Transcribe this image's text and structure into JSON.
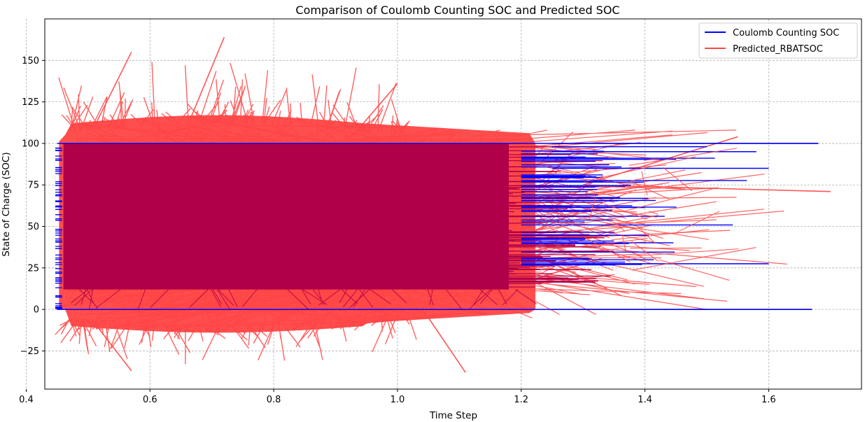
{
  "chart_data": {
    "type": "line",
    "title": "Comparison of Coulomb Counting SOC and Predicted SOC",
    "xlabel": "Time Step",
    "ylabel": "State of Charge (SOC)",
    "xlim": [
      0.43,
      1.75
    ],
    "ylim": [
      -48,
      175
    ],
    "xticks": [
      0.4,
      0.6,
      0.8,
      1.0,
      1.2,
      1.4,
      1.6
    ],
    "xtick_labels": [
      "0.4",
      "0.6",
      "0.8",
      "1.0",
      "1.2",
      "1.4",
      "1.6"
    ],
    "yticks": [
      -25,
      0,
      25,
      50,
      75,
      100,
      125,
      150
    ],
    "ytick_labels": [
      "−25",
      "0",
      "25",
      "50",
      "75",
      "100",
      "125",
      "150"
    ],
    "grid": true,
    "legend_position": "top-right",
    "series": [
      {
        "name": "Coulomb Counting SOC",
        "color": "#0000ff",
        "x_range": [
          0.45,
          1.68
        ],
        "y_range": [
          0,
          100
        ],
        "notable_points": [
          {
            "x": 1.68,
            "y": 100
          },
          {
            "x": 1.67,
            "y": 0
          },
          {
            "x": 1.6,
            "y": 27.5
          },
          {
            "x": 1.6,
            "y": 85
          },
          {
            "x": 1.58,
            "y": 95
          },
          {
            "x": 1.5,
            "y": 98
          }
        ]
      },
      {
        "name": "Predicted_RBATSOC",
        "color": "#ff4444",
        "x_range": [
          0.45,
          1.7
        ],
        "y_range": [
          -38,
          164
        ],
        "notable_points": [
          {
            "x": 0.72,
            "y": 164
          },
          {
            "x": 0.57,
            "y": 155
          },
          {
            "x": 1.0,
            "y": 136
          },
          {
            "x": 1.55,
            "y": 104
          },
          {
            "x": 1.7,
            "y": 71
          },
          {
            "x": 1.11,
            "y": -38
          },
          {
            "x": 0.57,
            "y": -37
          }
        ]
      }
    ],
    "overlap_color": "#b0004a",
    "overlap_band": {
      "x_range": [
        0.46,
        1.18
      ],
      "y_range": [
        12,
        100
      ]
    }
  }
}
